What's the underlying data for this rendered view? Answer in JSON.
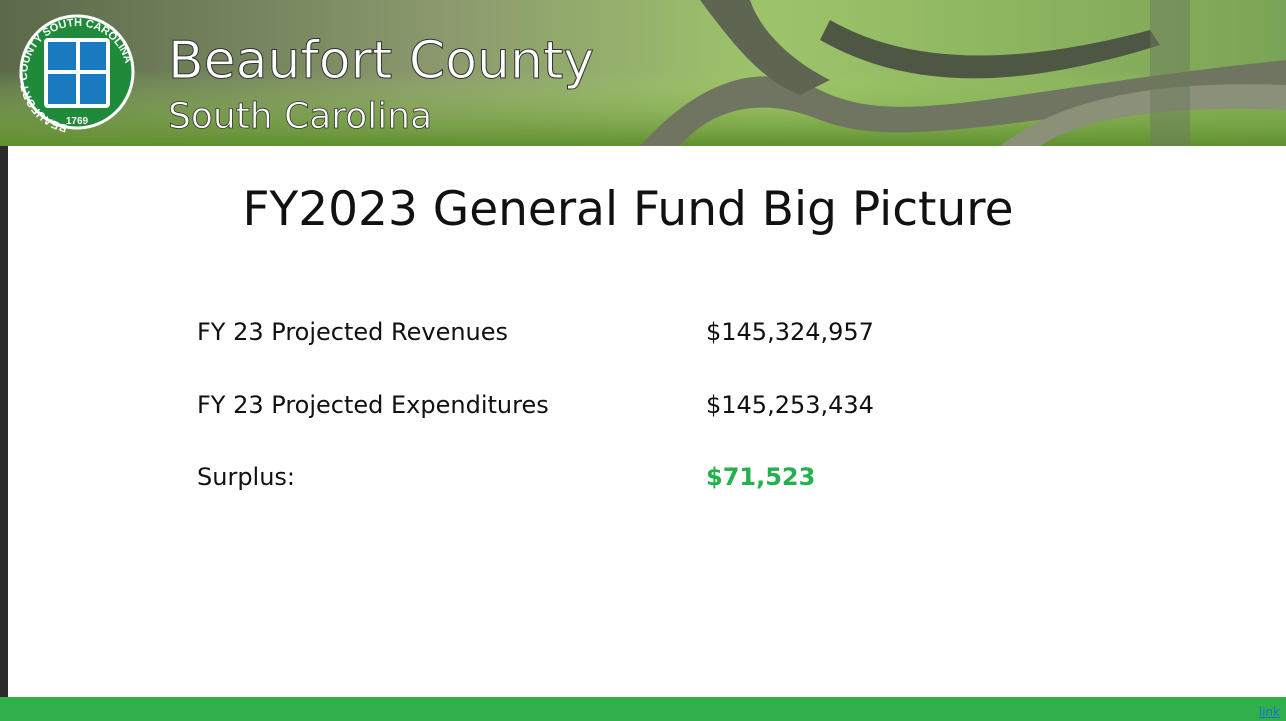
{
  "header": {
    "seal": {
      "ring": "BEAUFORT COUNTY SOUTH CAROLINA",
      "year": "1769"
    },
    "title": "Beaufort County",
    "subtitle": "South Carolina"
  },
  "slide": {
    "title": "FY2023 General Fund Big Picture",
    "rows": [
      {
        "label": "FY 23 Projected Revenues",
        "value": "$145,324,957"
      },
      {
        "label": "FY 23 Projected Expenditures",
        "value": "$145,253,434"
      },
      {
        "label": "Surplus:",
        "value": "$71,523"
      }
    ]
  },
  "footer": {
    "link": "link"
  }
}
